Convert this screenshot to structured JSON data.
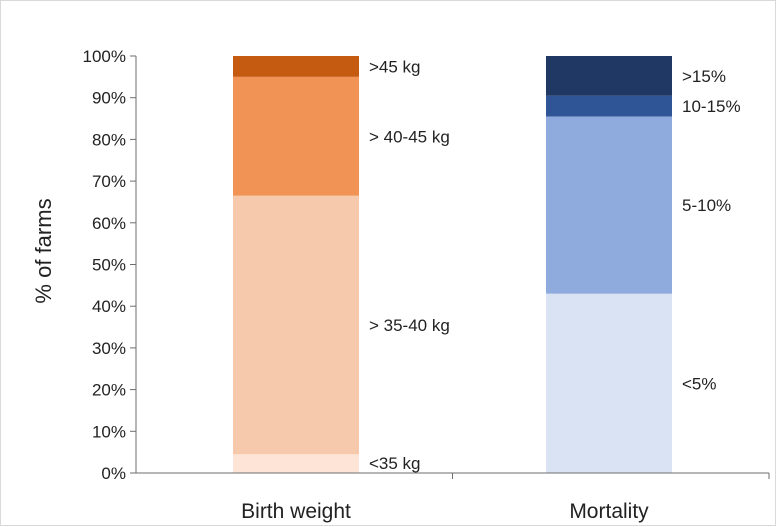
{
  "chart_data": {
    "type": "bar",
    "stacked": true,
    "ylabel": "% of farms",
    "xlabel": "",
    "ylim": [
      0,
      100
    ],
    "yticks": [
      "0%",
      "10%",
      "20%",
      "30%",
      "40%",
      "50%",
      "60%",
      "70%",
      "80%",
      "90%",
      "100%"
    ],
    "grid": false,
    "categories": [
      "Birth weight",
      "Mortality"
    ],
    "bars": [
      {
        "category": "Birth weight",
        "segments": [
          {
            "label": "<35 kg",
            "value": 4.5,
            "color": "#fde4d6"
          },
          {
            "label": "> 35-40 kg",
            "value": 62,
            "color": "#f7c9ac"
          },
          {
            "label": "> 40-45 kg",
            "value": 28.5,
            "color": "#f09355"
          },
          {
            "label": ">45 kg",
            "value": 5,
            "color": "#c55a11"
          }
        ]
      },
      {
        "category": "Mortality",
        "segments": [
          {
            "label": "<5%",
            "value": 43,
            "color": "#dae3f3"
          },
          {
            "label": "5-10%",
            "value": 42.5,
            "color": "#8faadc"
          },
          {
            "label": "10-15%",
            "value": 5,
            "color": "#2f5597"
          },
          {
            "label": ">15%",
            "value": 9.5,
            "color": "#1f3864"
          }
        ]
      }
    ]
  }
}
